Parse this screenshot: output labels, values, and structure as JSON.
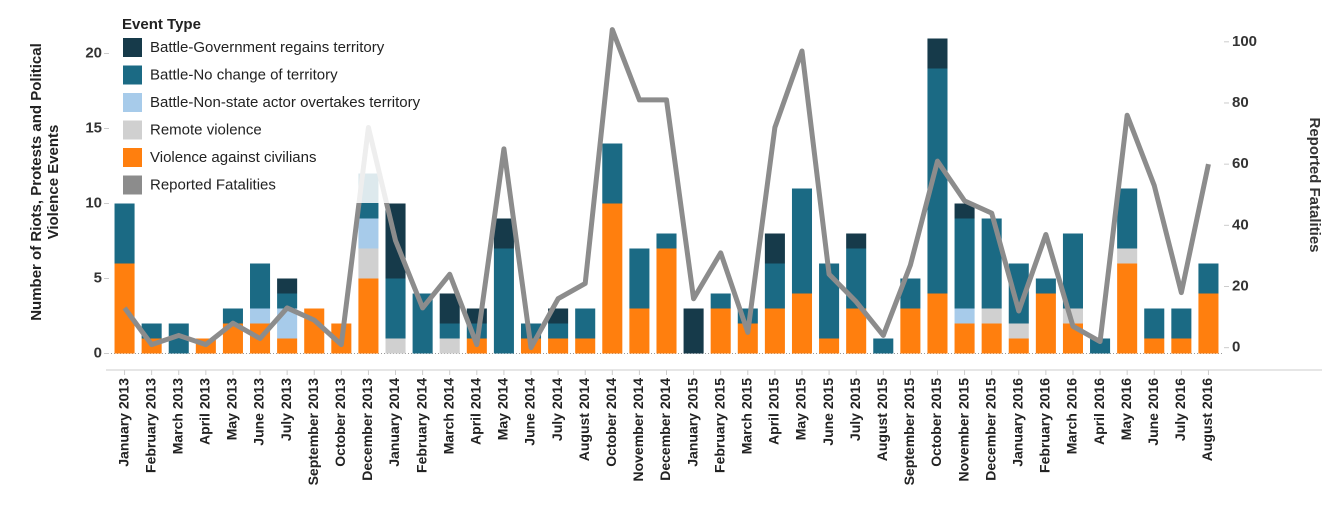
{
  "chart_data": {
    "type": "bar",
    "stacked": true,
    "y_label": "Number of Riots, Protests and Political Violence Events",
    "y2_label": "Reported Fatalities",
    "legend_title": "Event Type",
    "legend": "top-left",
    "categories": [
      "January 2013",
      "February 2013",
      "March 2013",
      "April 2013",
      "May 2013",
      "June 2013",
      "July 2013",
      "September 2013",
      "October 2013",
      "December 2013",
      "January 2014",
      "February 2014",
      "March 2014",
      "April 2014",
      "May 2014",
      "June 2014",
      "July 2014",
      "August 2014",
      "October 2014",
      "November 2014",
      "December 2014",
      "January 2015",
      "February 2015",
      "March 2015",
      "April 2015",
      "May 2015",
      "June 2015",
      "July 2015",
      "August 2015",
      "September 2015",
      "October 2015",
      "November 2015",
      "December 2015",
      "January 2016",
      "February 2016",
      "March 2016",
      "April 2016",
      "May 2016",
      "June 2016",
      "July 2016",
      "August 2016"
    ],
    "series": [
      {
        "name": "Battle-Government regains territory",
        "color": "#163a4a",
        "stack_order": 4,
        "values": [
          0,
          0,
          0,
          0,
          0,
          0,
          1,
          0,
          0,
          0,
          5,
          0,
          2,
          1,
          2,
          0,
          1,
          0,
          0,
          0,
          0,
          3,
          0,
          0,
          2,
          0,
          0,
          1,
          0,
          0,
          2,
          1,
          0,
          0,
          0,
          0,
          0,
          0,
          0,
          0,
          0
        ]
      },
      {
        "name": "Battle-No change of territory",
        "color": "#1b6a84",
        "stack_order": 3,
        "values": [
          4,
          1,
          2,
          0,
          1,
          3,
          1,
          0,
          0,
          3,
          4,
          4,
          1,
          1,
          7,
          1,
          1,
          2,
          4,
          4,
          1,
          0,
          1,
          1,
          3,
          7,
          5,
          4,
          1,
          2,
          15,
          6,
          6,
          4,
          1,
          5,
          1,
          4,
          2,
          2,
          2
        ]
      },
      {
        "name": "Battle-Non-state actor overtakes territory",
        "color": "#a7cbea",
        "stack_order": 2,
        "values": [
          0,
          0,
          0,
          0,
          0,
          1,
          2,
          0,
          0,
          2,
          0,
          0,
          0,
          0,
          0,
          0,
          0,
          0,
          0,
          0,
          0,
          0,
          0,
          0,
          0,
          0,
          0,
          0,
          0,
          0,
          0,
          1,
          0,
          0,
          0,
          0,
          0,
          0,
          0,
          0,
          0
        ]
      },
      {
        "name": "Remote violence",
        "color": "#d0d0d0",
        "stack_order": 1,
        "values": [
          0,
          0,
          0,
          0,
          0,
          0,
          0,
          0,
          0,
          2,
          1,
          0,
          1,
          0,
          0,
          0,
          0,
          0,
          0,
          0,
          0,
          0,
          0,
          0,
          0,
          0,
          0,
          0,
          0,
          0,
          0,
          0,
          1,
          1,
          0,
          1,
          0,
          1,
          0,
          0,
          0
        ]
      },
      {
        "name": "Violence against civilians",
        "color": "#ff7f0e",
        "stack_order": 0,
        "values": [
          6,
          1,
          0,
          1,
          2,
          2,
          1,
          3,
          2,
          5,
          0,
          0,
          0,
          1,
          0,
          1,
          1,
          1,
          10,
          3,
          7,
          0,
          3,
          2,
          3,
          4,
          1,
          3,
          0,
          3,
          4,
          2,
          2,
          1,
          4,
          2,
          0,
          6,
          1,
          1,
          4
        ]
      },
      {
        "name": "Reported Fatalities",
        "color": "#8c8c8c",
        "type": "line",
        "axis": "y2",
        "values": [
          13,
          1,
          4,
          1,
          8,
          3,
          13,
          9,
          1,
          72,
          35,
          13,
          24,
          1,
          65,
          0,
          16,
          21,
          104,
          81,
          81,
          16,
          31,
          5,
          72,
          97,
          24,
          15,
          4,
          27,
          61,
          48,
          44,
          12,
          37,
          7,
          2,
          76,
          53,
          18,
          60
        ]
      }
    ],
    "ylim": [
      -1.1,
      22.9
    ],
    "yticks": [
      0,
      5,
      10,
      15,
      20
    ],
    "y2lim": [
      -7.3,
      110.4
    ],
    "y2ticks": [
      0,
      20,
      40,
      60,
      80,
      100
    ]
  }
}
